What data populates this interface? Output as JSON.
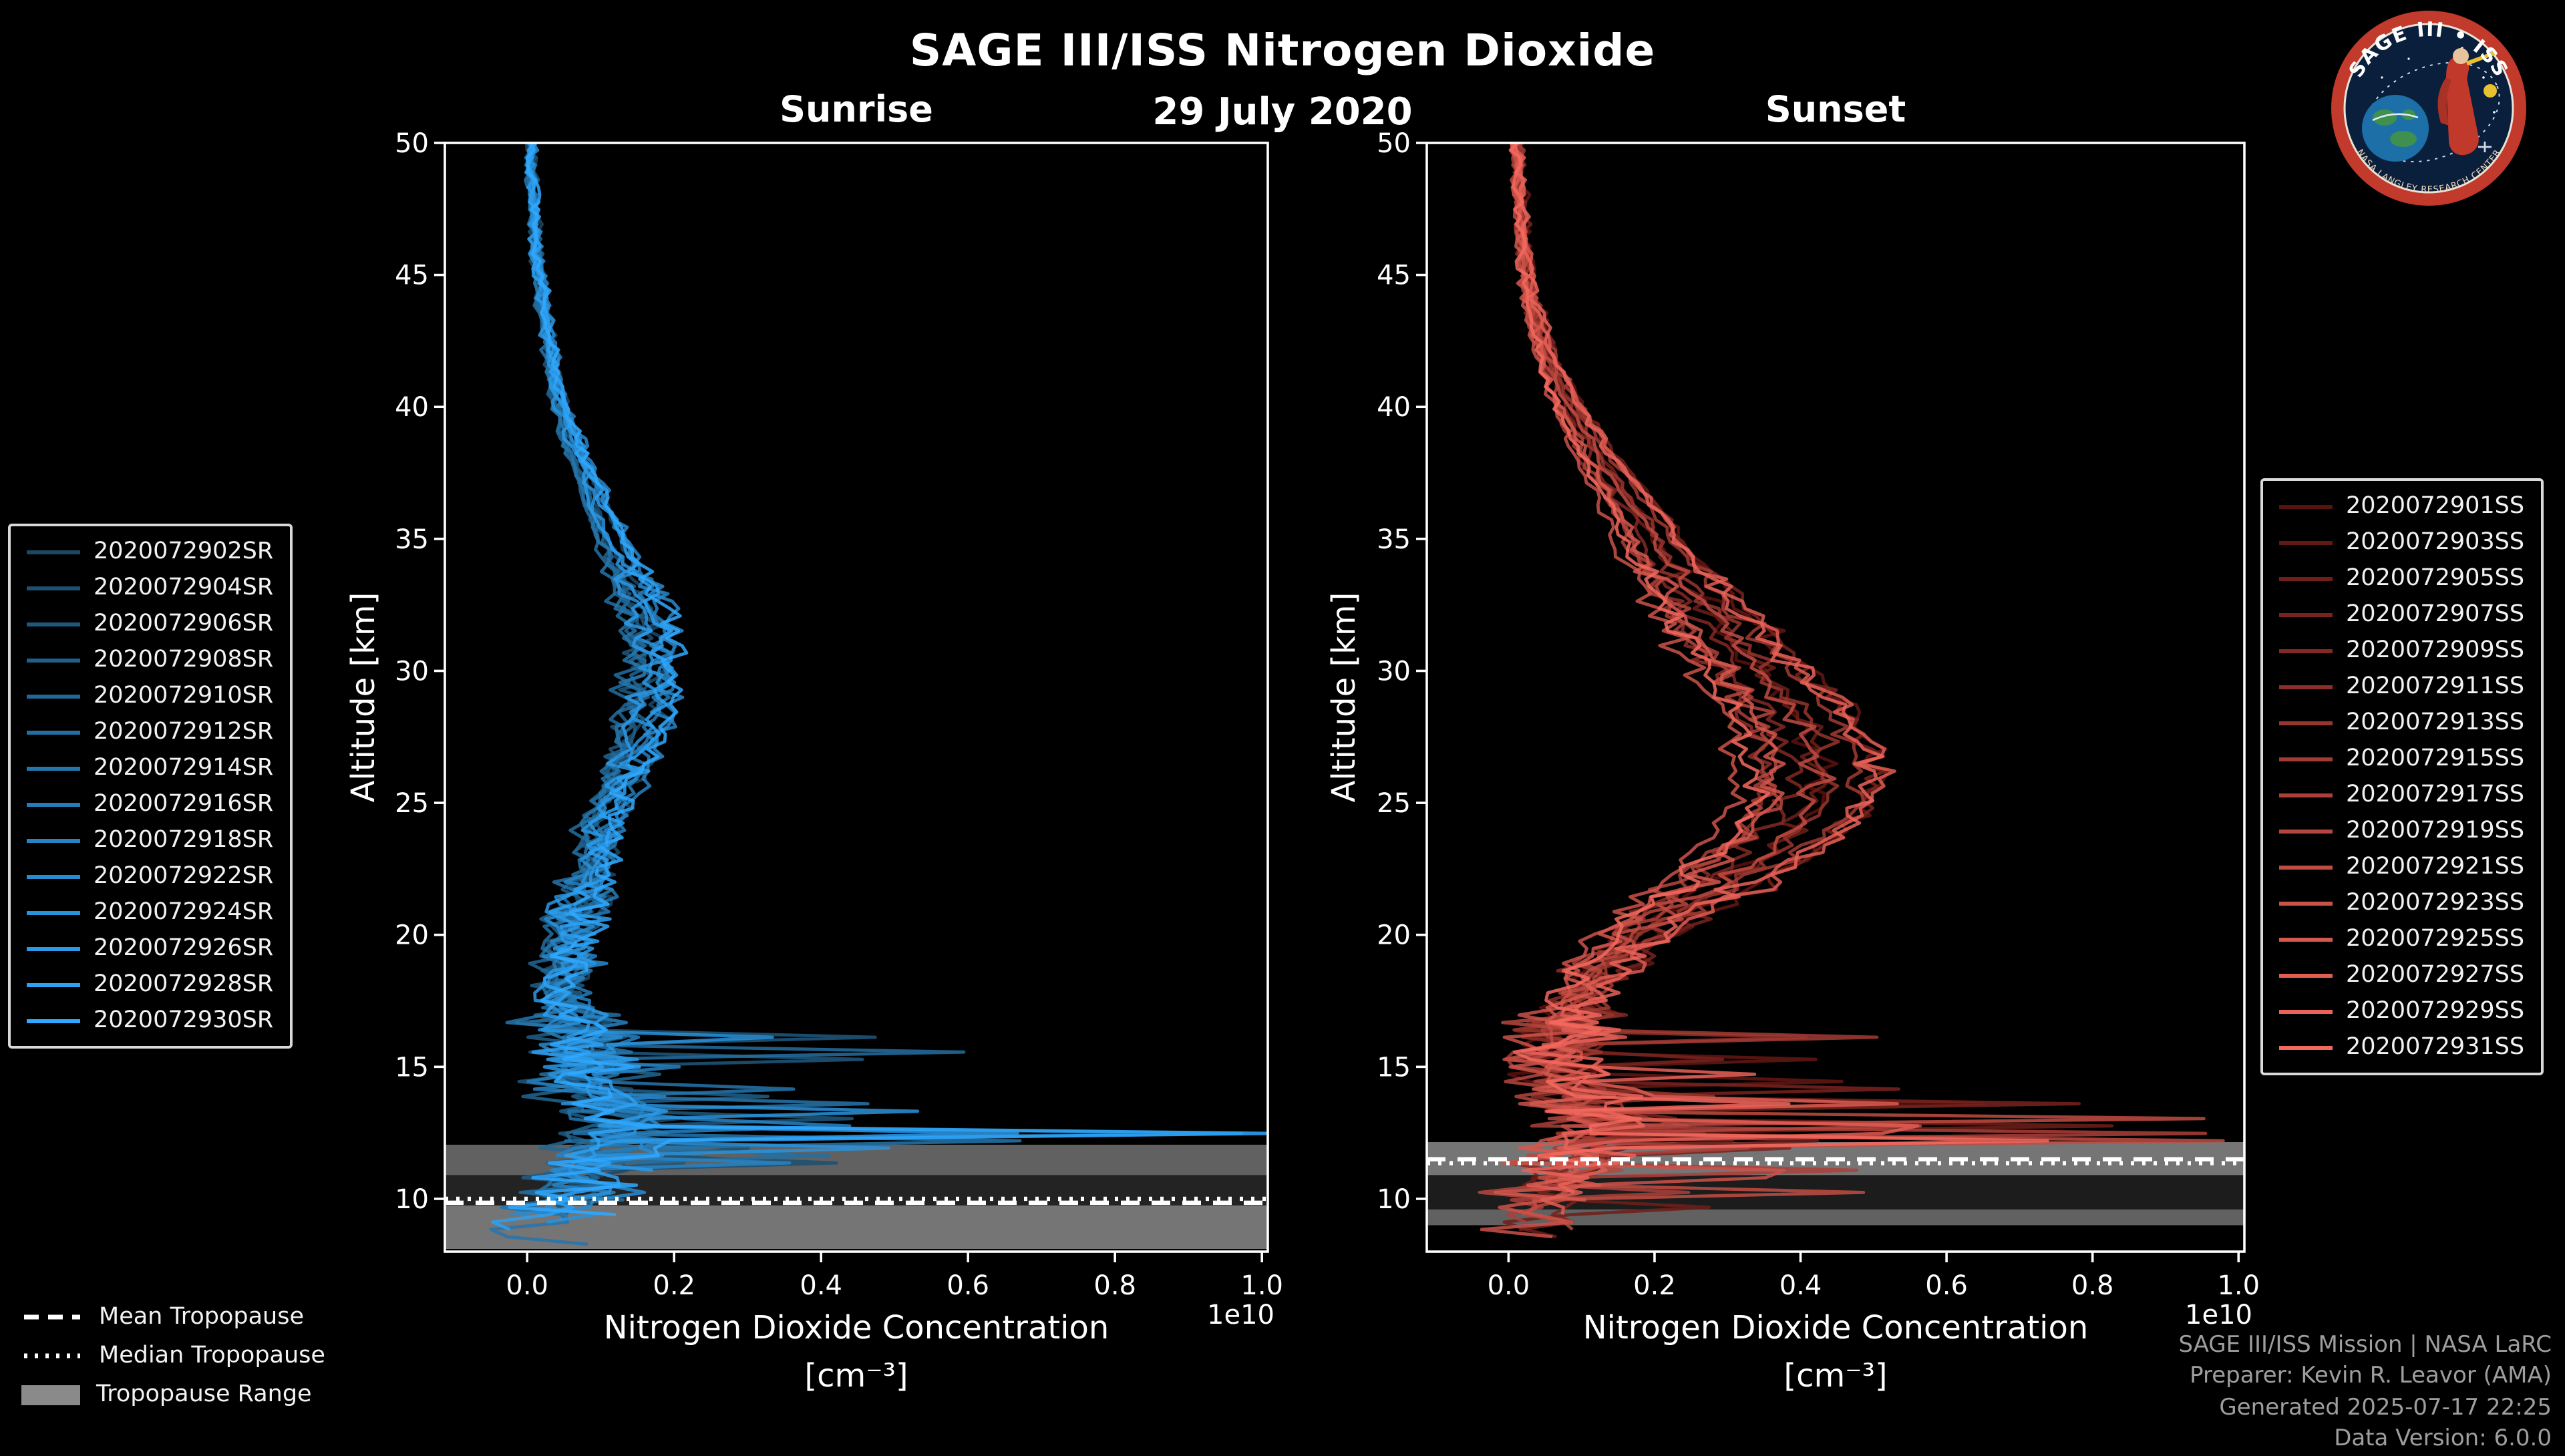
{
  "page": {
    "title": "SAGE III/ISS Nitrogen Dioxide",
    "date": "29 July 2020"
  },
  "logo": {
    "title_arc": "SAGE III • ISS",
    "bottom_arc": "NASA LANGLEY RESEARCH CENTER"
  },
  "tropopause_legend": {
    "mean": "Mean Tropopause",
    "median": "Median Tropopause",
    "range": "Tropopause Range"
  },
  "footer": {
    "lines": [
      "SAGE III/ISS Mission | NASA LaRC",
      "Preparer: Kevin R. Leavor (AMA)",
      "Generated 2025-07-17 22:25",
      "Data Version: 6.0.0"
    ]
  },
  "chart_data": [
    {
      "type": "line",
      "panel": "sunrise",
      "title": "Sunrise",
      "xlabel": "Nitrogen Dioxide Concentration",
      "xlabel_units": "[cm⁻³]",
      "x_offset_label": "1e10",
      "ylabel": "Altitude [km]",
      "xlim": [
        -0.112,
        1.008
      ],
      "ylim": [
        8,
        50
      ],
      "xticks": [
        "0.0",
        "0.2",
        "0.4",
        "0.6",
        "0.8",
        "1.0"
      ],
      "yticks": [
        10,
        15,
        20,
        25,
        30,
        35,
        40,
        45,
        50
      ],
      "line_color_start": "#1b4965",
      "line_color_end": "#2fa8ff",
      "series": [
        "2020072902SR",
        "2020072904SR",
        "2020072906SR",
        "2020072908SR",
        "2020072910SR",
        "2020072912SR",
        "2020072914SR",
        "2020072916SR",
        "2020072918SR",
        "2020072922SR",
        "2020072924SR",
        "2020072926SR",
        "2020072928SR",
        "2020072930SR"
      ],
      "mean_profile": {
        "altitude_km": [
          50,
          48,
          46,
          44,
          42,
          40,
          38,
          36,
          34,
          32,
          31,
          30,
          29,
          28,
          27,
          26,
          25,
          24,
          23,
          22,
          21,
          20,
          19,
          18,
          17,
          16,
          15,
          14,
          13,
          12,
          11,
          10,
          9,
          8
        ],
        "no2_1e10_per_cm3": [
          0.005,
          0.008,
          0.012,
          0.02,
          0.03,
          0.045,
          0.07,
          0.1,
          0.13,
          0.16,
          0.165,
          0.17,
          0.163,
          0.155,
          0.145,
          0.13,
          0.115,
          0.1,
          0.09,
          0.08,
          0.07,
          0.06,
          0.052,
          0.046,
          0.055,
          0.08,
          0.075,
          0.09,
          0.15,
          0.11,
          0.08,
          0.05,
          0.02,
          0.01
        ]
      },
      "tropopause": {
        "mean_km": 9.85,
        "median_km": 10.0,
        "range_km": [
          8.1,
          12.05
        ],
        "bands": [
          {
            "alt": [
              8.1,
              9.75
            ],
            "opacity": 0.85
          },
          {
            "alt": [
              9.75,
              10.9
            ],
            "opacity": 0.25
          },
          {
            "alt": [
              10.9,
              12.05
            ],
            "opacity": 0.7
          }
        ]
      },
      "seed": 7
    },
    {
      "type": "line",
      "panel": "sunset",
      "title": "Sunset",
      "xlabel": "Nitrogen Dioxide Concentration",
      "xlabel_units": "[cm⁻³]",
      "x_offset_label": "1e10",
      "ylabel": "Altitude [km]",
      "xlim": [
        -0.112,
        1.008
      ],
      "ylim": [
        8,
        50
      ],
      "xticks": [
        "0.0",
        "0.2",
        "0.4",
        "0.6",
        "0.8",
        "1.0"
      ],
      "yticks": [
        10,
        15,
        20,
        25,
        30,
        35,
        40,
        45,
        50
      ],
      "line_color_start": "#5a120e",
      "line_color_end": "#f4695e",
      "series": [
        "2020072901SS",
        "2020072903SS",
        "2020072905SS",
        "2020072907SS",
        "2020072909SS",
        "2020072911SS",
        "2020072913SS",
        "2020072915SS",
        "2020072917SS",
        "2020072919SS",
        "2020072921SS",
        "2020072923SS",
        "2020072925SS",
        "2020072927SS",
        "2020072929SS",
        "2020072931SS"
      ],
      "mean_profile": {
        "altitude_km": [
          50,
          48,
          46,
          44,
          42,
          40,
          38,
          36,
          34,
          32,
          31,
          30,
          29,
          28,
          27,
          26,
          25,
          24,
          23,
          22,
          21,
          20,
          19,
          18,
          17,
          16,
          15,
          14,
          13,
          12,
          11,
          10,
          9,
          8
        ],
        "no2_1e10_per_cm3": [
          0.01,
          0.015,
          0.02,
          0.03,
          0.05,
          0.08,
          0.12,
          0.17,
          0.21,
          0.27,
          0.3,
          0.33,
          0.36,
          0.385,
          0.4,
          0.41,
          0.4,
          0.37,
          0.33,
          0.28,
          0.22,
          0.17,
          0.13,
          0.1,
          0.08,
          0.07,
          0.065,
          0.09,
          0.13,
          0.1,
          0.08,
          0.05,
          0.03,
          0.02
        ]
      },
      "tropopause": {
        "mean_km": 11.5,
        "median_km": 11.35,
        "range_km": [
          9.0,
          12.15
        ],
        "bands": [
          {
            "alt": [
              10.9,
              12.15
            ],
            "opacity": 0.85
          },
          {
            "alt": [
              9.6,
              10.9
            ],
            "opacity": 0.2
          },
          {
            "alt": [
              9.0,
              9.6
            ],
            "opacity": 0.7
          }
        ]
      },
      "seed": 21
    }
  ]
}
